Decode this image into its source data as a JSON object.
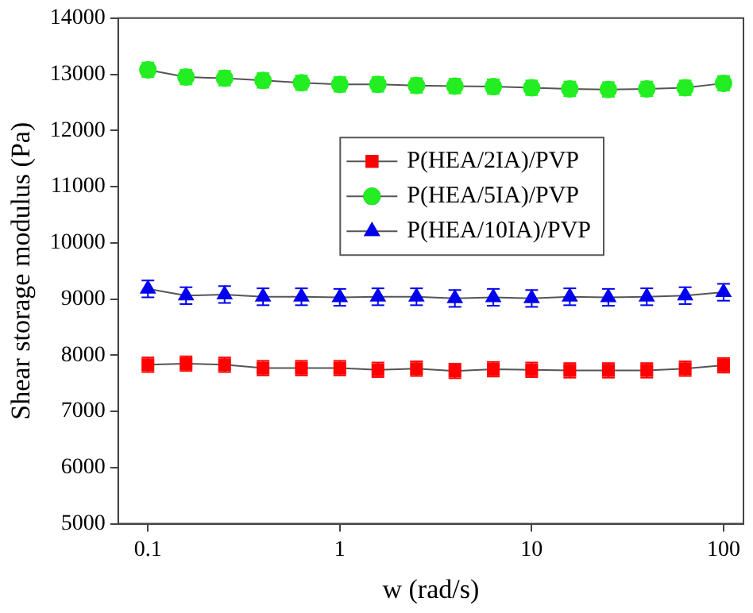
{
  "chart_data": {
    "type": "line",
    "xlabel": "w (rad/s)",
    "ylabel": "Shear storage modulus (Pa)",
    "log": "x",
    "x": [
      0.1,
      0.158,
      0.251,
      0.398,
      0.631,
      1,
      1.58,
      2.51,
      3.98,
      6.31,
      10,
      15.8,
      25.1,
      39.8,
      63.1,
      100
    ],
    "xlim": [
      0.07,
      127
    ],
    "xticks": [
      0.1,
      1,
      10,
      100
    ],
    "ylim": [
      5000,
      14000
    ],
    "yticks": [
      5000,
      6000,
      7000,
      8000,
      9000,
      10000,
      11000,
      12000,
      13000,
      14000
    ],
    "grid": false,
    "legend": "right",
    "line_style": "solid",
    "series": [
      {
        "name": "P(HEA/2IA)/PVP",
        "color": "#ff0000",
        "marker": "square",
        "values": [
          7830,
          7850,
          7830,
          7770,
          7770,
          7770,
          7740,
          7760,
          7720,
          7750,
          7740,
          7730,
          7730,
          7730,
          7760,
          7820
        ],
        "errors": [
          130,
          130,
          130,
          130,
          130,
          130,
          130,
          130,
          130,
          130,
          130,
          130,
          130,
          130,
          130,
          130
        ]
      },
      {
        "name": "P(HEA/5IA)/PVP",
        "color": "#22ee22",
        "marker": "circle",
        "values": [
          13080,
          12950,
          12930,
          12890,
          12850,
          12820,
          12820,
          12800,
          12790,
          12780,
          12760,
          12740,
          12730,
          12740,
          12760,
          12840
        ],
        "errors": [
          130,
          130,
          130,
          130,
          130,
          130,
          130,
          130,
          130,
          130,
          130,
          130,
          130,
          130,
          130,
          130
        ]
      },
      {
        "name": "P(HEA/10IA)/PVP",
        "color": "#0000ee",
        "marker": "triangle",
        "values": [
          9180,
          9060,
          9080,
          9040,
          9040,
          9030,
          9040,
          9040,
          9010,
          9030,
          9010,
          9040,
          9030,
          9040,
          9060,
          9120
        ],
        "errors": [
          150,
          150,
          150,
          150,
          150,
          150,
          150,
          150,
          150,
          150,
          150,
          150,
          150,
          150,
          150,
          150
        ]
      }
    ]
  }
}
